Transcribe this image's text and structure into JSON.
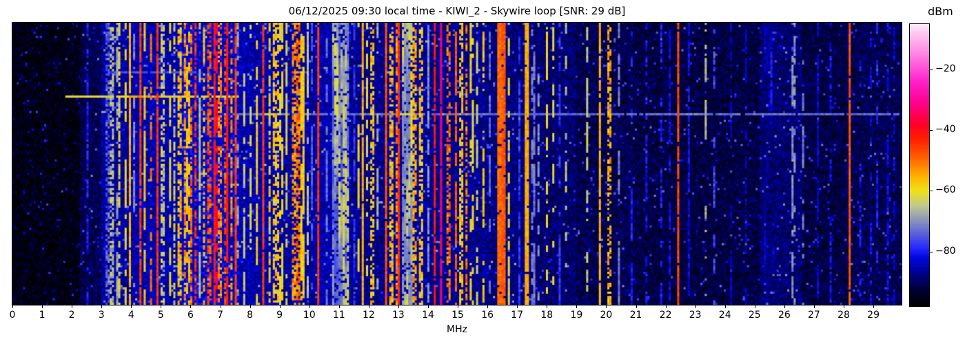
{
  "figure": {
    "title": "06/12/2025 09:30 local time - KIWI_2 - Skywire loop [SNR: 29 dB]",
    "colorbar_label": "dBm",
    "x_axis_label": "MHz"
  },
  "chart_data": {
    "type": "heatmap",
    "subtype": "radio-spectrogram-waterfall",
    "title": "06/12/2025 09:30 local time - KIWI_2 - Skywire loop [SNR: 29 dB]",
    "datetime_label": "06/12/2025 09:30 local time",
    "station": "KIWI_2",
    "antenna": "Skywire loop",
    "snr_db": 29,
    "xlabel": "MHz",
    "colorbar_label": "dBm",
    "x_range_mhz": [
      0,
      29.95
    ],
    "x_ticks": [
      0,
      1,
      2,
      3,
      4,
      5,
      6,
      7,
      8,
      9,
      10,
      11,
      12,
      13,
      14,
      15,
      16,
      17,
      18,
      19,
      20,
      21,
      22,
      23,
      24,
      25,
      26,
      27,
      28,
      29
    ],
    "value_range_dbm": [
      -98,
      -5
    ],
    "colorbar_ticks": [
      {
        "value": -20,
        "label": "−20"
      },
      {
        "value": -40,
        "label": "−40"
      },
      {
        "value": -60,
        "label": "−60"
      },
      {
        "value": -80,
        "label": "−80"
      }
    ],
    "colormap_dbm_stops": [
      [
        -98,
        "#000000"
      ],
      [
        -92,
        "#000040"
      ],
      [
        -87,
        "#000090"
      ],
      [
        -82,
        "#0008e0"
      ],
      [
        -79,
        "#2428ff"
      ],
      [
        -75,
        "#5058e0"
      ],
      [
        -70,
        "#8890c0"
      ],
      [
        -65,
        "#c0c890"
      ],
      [
        -60,
        "#f0e018"
      ],
      [
        -55,
        "#ffb000"
      ],
      [
        -49,
        "#ff6000"
      ],
      [
        -43,
        "#ff2000"
      ],
      [
        -38,
        "#ff0028"
      ],
      [
        -31,
        "#ff0090"
      ],
      [
        -24,
        "#ff20c8"
      ],
      [
        -16,
        "#ff78e0"
      ],
      [
        -8,
        "#ffc8f0"
      ],
      [
        -5,
        "#ffe8fa"
      ]
    ],
    "noise_floor_dbm": [
      {
        "f0": 0.0,
        "f1": 2.3,
        "dbm": -96
      },
      {
        "f0": 2.3,
        "f1": 3.0,
        "dbm": -91
      },
      {
        "f0": 3.0,
        "f1": 4.0,
        "dbm": -86
      },
      {
        "f0": 4.0,
        "f1": 5.6,
        "dbm": -85
      },
      {
        "f0": 5.6,
        "f1": 7.6,
        "dbm": -83
      },
      {
        "f0": 7.6,
        "f1": 9.0,
        "dbm": -85
      },
      {
        "f0": 9.0,
        "f1": 10.2,
        "dbm": -86
      },
      {
        "f0": 10.2,
        "f1": 11.4,
        "dbm": -85
      },
      {
        "f0": 11.4,
        "f1": 12.6,
        "dbm": -87
      },
      {
        "f0": 12.6,
        "f1": 14.0,
        "dbm": -86
      },
      {
        "f0": 14.0,
        "f1": 16.0,
        "dbm": -87
      },
      {
        "f0": 16.0,
        "f1": 17.5,
        "dbm": -88
      },
      {
        "f0": 17.5,
        "f1": 19.0,
        "dbm": -89
      },
      {
        "f0": 19.0,
        "f1": 21.0,
        "dbm": -91
      },
      {
        "f0": 21.0,
        "f1": 24.5,
        "dbm": -92
      },
      {
        "f0": 24.5,
        "f1": 25.2,
        "dbm": -92
      },
      {
        "f0": 25.2,
        "f1": 26.6,
        "dbm": -89
      },
      {
        "f0": 26.6,
        "f1": 28.0,
        "dbm": -92
      },
      {
        "f0": 28.0,
        "f1": 29.95,
        "dbm": -91
      }
    ],
    "signal_bands": [
      {
        "f0": 2.33,
        "f1": 2.38,
        "dbm": -79,
        "style": "solid"
      },
      {
        "f0": 2.5,
        "f1": 2.55,
        "dbm": -80,
        "style": "dashed"
      },
      {
        "f0": 2.9,
        "f1": 2.95,
        "dbm": -85,
        "style": "dashed"
      },
      {
        "f0": 3.15,
        "f1": 3.25,
        "dbm": -74,
        "style": "patchy"
      },
      {
        "f0": 3.3,
        "f1": 3.42,
        "dbm": -66,
        "style": "patchy"
      },
      {
        "f0": 3.48,
        "f1": 3.56,
        "dbm": -68,
        "style": "dashed"
      },
      {
        "f0": 3.58,
        "f1": 3.66,
        "dbm": -62,
        "style": "patchy"
      },
      {
        "f0": 3.75,
        "f1": 3.82,
        "dbm": -60,
        "style": "dashed"
      },
      {
        "f0": 3.95,
        "f1": 4.02,
        "dbm": -55,
        "style": "solid"
      },
      {
        "f0": 4.1,
        "f1": 4.16,
        "dbm": -71,
        "style": "dashed"
      },
      {
        "f0": 4.28,
        "f1": 4.34,
        "dbm": -46,
        "style": "solid"
      },
      {
        "f0": 4.45,
        "f1": 4.52,
        "dbm": -58,
        "style": "dashed"
      },
      {
        "f0": 4.62,
        "f1": 4.68,
        "dbm": -50,
        "style": "dashed"
      },
      {
        "f0": 4.83,
        "f1": 4.89,
        "dbm": -45,
        "style": "solid"
      },
      {
        "f0": 5.0,
        "f1": 5.12,
        "dbm": -64,
        "style": "patchy"
      },
      {
        "f0": 5.25,
        "f1": 5.33,
        "dbm": -60,
        "style": "dashed"
      },
      {
        "f0": 5.4,
        "f1": 5.48,
        "dbm": -63,
        "style": "patchy"
      },
      {
        "f0": 5.58,
        "f1": 5.68,
        "dbm": -57,
        "style": "patchy"
      },
      {
        "f0": 5.75,
        "f1": 5.85,
        "dbm": -53,
        "style": "patchy"
      },
      {
        "f0": 5.88,
        "f1": 5.96,
        "dbm": -57,
        "style": "dashed"
      },
      {
        "f0": 6.0,
        "f1": 6.08,
        "dbm": -50,
        "style": "patchy"
      },
      {
        "f0": 6.12,
        "f1": 6.22,
        "dbm": -44,
        "style": "patchy"
      },
      {
        "f0": 6.28,
        "f1": 6.34,
        "dbm": -65,
        "style": "dashed"
      },
      {
        "f0": 6.42,
        "f1": 6.52,
        "dbm": -56,
        "style": "patchy"
      },
      {
        "f0": 6.55,
        "f1": 6.72,
        "dbm": -48,
        "style": "patchy"
      },
      {
        "f0": 6.76,
        "f1": 6.84,
        "dbm": -42,
        "style": "solid"
      },
      {
        "f0": 6.86,
        "f1": 6.92,
        "dbm": -36,
        "style": "dashed"
      },
      {
        "f0": 6.95,
        "f1": 7.06,
        "dbm": -52,
        "style": "patchy"
      },
      {
        "f0": 7.1,
        "f1": 7.2,
        "dbm": -47,
        "style": "patchy"
      },
      {
        "f0": 7.22,
        "f1": 7.28,
        "dbm": -42,
        "style": "solid"
      },
      {
        "f0": 7.32,
        "f1": 7.45,
        "dbm": -53,
        "style": "patchy"
      },
      {
        "f0": 7.48,
        "f1": 7.54,
        "dbm": -46,
        "style": "solid"
      },
      {
        "f0": 7.58,
        "f1": 7.66,
        "dbm": -68,
        "style": "dashed"
      },
      {
        "f0": 7.75,
        "f1": 7.82,
        "dbm": -64,
        "style": "dashed"
      },
      {
        "f0": 8.0,
        "f1": 8.07,
        "dbm": -62,
        "style": "dashed"
      },
      {
        "f0": 8.18,
        "f1": 8.26,
        "dbm": -58,
        "style": "dashed"
      },
      {
        "f0": 8.42,
        "f1": 8.48,
        "dbm": -45,
        "style": "solid"
      },
      {
        "f0": 8.6,
        "f1": 8.72,
        "dbm": -60,
        "style": "patchy"
      },
      {
        "f0": 8.78,
        "f1": 8.95,
        "dbm": -58,
        "style": "patchy"
      },
      {
        "f0": 9.02,
        "f1": 9.12,
        "dbm": -60,
        "style": "dashed"
      },
      {
        "f0": 9.2,
        "f1": 9.3,
        "dbm": -63,
        "style": "dashed"
      },
      {
        "f0": 9.38,
        "f1": 9.52,
        "dbm": -53,
        "style": "patchy"
      },
      {
        "f0": 9.55,
        "f1": 9.68,
        "dbm": -50,
        "style": "patchy"
      },
      {
        "f0": 9.72,
        "f1": 9.82,
        "dbm": -58,
        "style": "dashed"
      },
      {
        "f0": 9.88,
        "f1": 9.95,
        "dbm": -65,
        "style": "dashed"
      },
      {
        "f0": 10.05,
        "f1": 10.1,
        "dbm": -76,
        "style": "dashed"
      },
      {
        "f0": 10.29,
        "f1": 10.35,
        "dbm": -45,
        "style": "solid"
      },
      {
        "f0": 10.55,
        "f1": 10.62,
        "dbm": -73,
        "style": "dashed"
      },
      {
        "f0": 10.8,
        "f1": 11.35,
        "dbm": -64,
        "style": "smudge"
      },
      {
        "f0": 11.45,
        "f1": 11.52,
        "dbm": -78,
        "style": "dashed"
      },
      {
        "f0": 11.6,
        "f1": 11.66,
        "dbm": -60,
        "style": "dashed"
      },
      {
        "f0": 11.76,
        "f1": 11.82,
        "dbm": -55,
        "style": "solid"
      },
      {
        "f0": 11.9,
        "f1": 11.98,
        "dbm": -62,
        "style": "dashed"
      },
      {
        "f0": 12.05,
        "f1": 12.18,
        "dbm": -58,
        "style": "patchy"
      },
      {
        "f0": 12.28,
        "f1": 12.36,
        "dbm": -66,
        "style": "dashed"
      },
      {
        "f0": 12.55,
        "f1": 12.61,
        "dbm": -48,
        "style": "solid"
      },
      {
        "f0": 12.68,
        "f1": 12.82,
        "dbm": -56,
        "style": "patchy"
      },
      {
        "f0": 12.88,
        "f1": 12.98,
        "dbm": -52,
        "style": "patchy"
      },
      {
        "f0": 13.0,
        "f1": 13.05,
        "dbm": -44,
        "style": "solid"
      },
      {
        "f0": 13.1,
        "f1": 13.45,
        "dbm": -60,
        "style": "smudge"
      },
      {
        "f0": 13.48,
        "f1": 13.62,
        "dbm": -55,
        "style": "patchy"
      },
      {
        "f0": 13.68,
        "f1": 13.85,
        "dbm": -58,
        "style": "patchy"
      },
      {
        "f0": 13.95,
        "f1": 14.02,
        "dbm": -70,
        "style": "dashed"
      },
      {
        "f0": 14.2,
        "f1": 14.26,
        "dbm": -42,
        "style": "solid"
      },
      {
        "f0": 14.38,
        "f1": 14.43,
        "dbm": -55,
        "style": "patchy"
      },
      {
        "f0": 14.44,
        "f1": 14.48,
        "dbm": -34,
        "style": "solid"
      },
      {
        "f0": 14.6,
        "f1": 14.78,
        "dbm": -50,
        "style": "patchy"
      },
      {
        "f0": 14.88,
        "f1": 15.0,
        "dbm": -48,
        "style": "dashed"
      },
      {
        "f0": 15.08,
        "f1": 15.2,
        "dbm": -58,
        "style": "patchy"
      },
      {
        "f0": 15.25,
        "f1": 15.35,
        "dbm": -52,
        "style": "patchy"
      },
      {
        "f0": 15.42,
        "f1": 15.55,
        "dbm": -60,
        "style": "dashed"
      },
      {
        "f0": 15.62,
        "f1": 15.72,
        "dbm": -64,
        "style": "dashed"
      },
      {
        "f0": 15.84,
        "f1": 15.92,
        "dbm": -57,
        "style": "dashed"
      },
      {
        "f0": 16.05,
        "f1": 16.12,
        "dbm": -73,
        "style": "dashed"
      },
      {
        "f0": 16.35,
        "f1": 16.44,
        "dbm": -50,
        "style": "solid"
      },
      {
        "f0": 16.45,
        "f1": 16.49,
        "dbm": -40,
        "style": "solid"
      },
      {
        "f0": 16.5,
        "f1": 16.6,
        "dbm": -48,
        "style": "solid"
      },
      {
        "f0": 16.68,
        "f1": 16.78,
        "dbm": -62,
        "style": "dashed"
      },
      {
        "f0": 17.05,
        "f1": 17.1,
        "dbm": -78,
        "style": "dashed"
      },
      {
        "f0": 17.28,
        "f1": 17.38,
        "dbm": -55,
        "style": "solid"
      },
      {
        "f0": 17.5,
        "f1": 17.58,
        "dbm": -72,
        "style": "dashed"
      },
      {
        "f0": 17.7,
        "f1": 17.78,
        "dbm": -70,
        "style": "dashed"
      },
      {
        "f0": 17.95,
        "f1": 18.02,
        "dbm": -60,
        "style": "dashed"
      },
      {
        "f0": 18.15,
        "f1": 18.25,
        "dbm": -62,
        "style": "dashed"
      },
      {
        "f0": 18.4,
        "f1": 18.45,
        "dbm": -78,
        "style": "dashed"
      },
      {
        "f0": 18.6,
        "f1": 18.68,
        "dbm": -66,
        "style": "dashed",
        "duty": 0.35
      },
      {
        "f0": 18.95,
        "f1": 19.0,
        "dbm": -80,
        "style": "dashed"
      },
      {
        "f0": 19.15,
        "f1": 19.2,
        "dbm": -80,
        "style": "dashed"
      },
      {
        "f0": 19.35,
        "f1": 19.42,
        "dbm": -64,
        "style": "dashed",
        "duty": 0.4
      },
      {
        "f0": 19.75,
        "f1": 19.82,
        "dbm": -56,
        "style": "solid"
      },
      {
        "f0": 20.05,
        "f1": 20.2,
        "dbm": -55,
        "style": "patchy"
      },
      {
        "f0": 20.4,
        "f1": 20.46,
        "dbm": -72,
        "style": "dashed"
      },
      {
        "f0": 20.8,
        "f1": 20.86,
        "dbm": -80,
        "style": "dashed"
      },
      {
        "f0": 21.3,
        "f1": 21.36,
        "dbm": -81,
        "style": "dashed"
      },
      {
        "f0": 21.8,
        "f1": 21.86,
        "dbm": -80,
        "style": "dashed"
      },
      {
        "f0": 22.1,
        "f1": 22.15,
        "dbm": -82,
        "style": "dashed"
      },
      {
        "f0": 22.42,
        "f1": 22.48,
        "dbm": -47,
        "style": "solid"
      },
      {
        "f0": 22.75,
        "f1": 22.8,
        "dbm": -82,
        "style": "dashed"
      },
      {
        "f0": 23.3,
        "f1": 23.38,
        "dbm": -66,
        "style": "dashed",
        "duty": 0.45
      },
      {
        "f0": 23.62,
        "f1": 23.67,
        "dbm": -76,
        "style": "dashed",
        "duty": 0.4
      },
      {
        "f0": 24.2,
        "f1": 24.25,
        "dbm": -84,
        "style": "dashed"
      },
      {
        "f0": 24.7,
        "f1": 24.75,
        "dbm": -84,
        "style": "dashed"
      },
      {
        "f0": 25.3,
        "f1": 25.65,
        "dbm": -82,
        "style": "smudge"
      },
      {
        "f0": 26.25,
        "f1": 26.35,
        "dbm": -70,
        "style": "dashed",
        "duty": 0.45
      },
      {
        "f0": 26.6,
        "f1": 26.68,
        "dbm": -72,
        "style": "dashed",
        "duty": 0.4
      },
      {
        "f0": 27.1,
        "f1": 27.15,
        "dbm": -83,
        "style": "dashed"
      },
      {
        "f0": 27.55,
        "f1": 27.6,
        "dbm": -82,
        "style": "dashed"
      },
      {
        "f0": 28.16,
        "f1": 28.22,
        "dbm": -48,
        "style": "solid"
      },
      {
        "f0": 28.55,
        "f1": 28.62,
        "dbm": -80,
        "style": "dashed",
        "duty": 0.4
      },
      {
        "f0": 28.85,
        "f1": 28.92,
        "dbm": -82,
        "style": "dashed"
      },
      {
        "f0": 29.1,
        "f1": 29.17,
        "dbm": -80,
        "style": "dashed",
        "duty": 0.4
      },
      {
        "f0": 29.45,
        "f1": 29.55,
        "dbm": -82,
        "style": "dashed"
      },
      {
        "f0": 29.7,
        "f1": 29.76,
        "dbm": -83,
        "style": "dashed"
      }
    ],
    "horizontal_streaks": [
      {
        "t": 0.17,
        "f0": 3.2,
        "f1": 6.2,
        "dbm": -76
      },
      {
        "t": 0.262,
        "f0": 1.8,
        "f1": 7.6,
        "dbm": -61
      },
      {
        "t": 0.262,
        "f0": 3.9,
        "f1": 5.0,
        "dbm": -53
      },
      {
        "t": 0.322,
        "f0": 7.45,
        "f1": 29.9,
        "dbm": -73
      },
      {
        "t": 0.322,
        "f0": 8.4,
        "f1": 9.1,
        "dbm": -64
      },
      {
        "t": 0.322,
        "f0": 13.0,
        "f1": 13.6,
        "dbm": -62
      },
      {
        "t": 0.322,
        "f0": 22.3,
        "f1": 23.3,
        "dbm": -71
      }
    ],
    "render": {
      "cols": 420,
      "rows": 128,
      "seed": 20250612
    }
  }
}
